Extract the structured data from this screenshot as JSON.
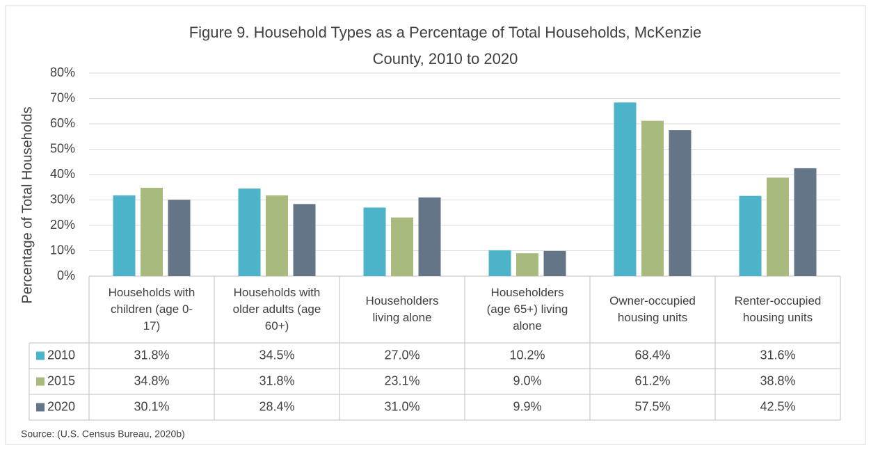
{
  "chart_data": {
    "type": "bar",
    "title": "Figure 9. Household Types as a Percentage of Total Households, McKenzie County, 2010 to 2020",
    "y_label": "Percentage of Total Households",
    "categories": [
      "Households with children (age 0-17)",
      "Households with older adults (age 60+)",
      "Householders living alone",
      "Householders (age 65+) living alone",
      "Owner-occupied housing units",
      "Renter-occupied housing units"
    ],
    "series": [
      {
        "name": "2010",
        "color": "#4db3c8",
        "values": [
          31.8,
          34.5,
          27.0,
          10.2,
          68.4,
          31.6
        ],
        "value_labels": [
          "31.8%",
          "34.5%",
          "27.0%",
          "10.2%",
          "68.4%",
          "31.6%"
        ]
      },
      {
        "name": "2015",
        "color": "#a8ba7d",
        "values": [
          34.8,
          31.8,
          23.1,
          9.0,
          61.2,
          38.8
        ],
        "value_labels": [
          "34.8%",
          "31.8%",
          "23.1%",
          "9.0%",
          "61.2%",
          "38.8%"
        ]
      },
      {
        "name": "2020",
        "color": "#657588",
        "values": [
          30.1,
          28.4,
          31.0,
          9.9,
          57.5,
          42.5
        ],
        "value_labels": [
          "30.1%",
          "28.4%",
          "31.0%",
          "9.9%",
          "57.5%",
          "42.5%"
        ]
      }
    ],
    "ylim": [
      0,
      80
    ],
    "yticks": [
      {
        "value": 0,
        "label": "0%"
      },
      {
        "value": 10,
        "label": "10%"
      },
      {
        "value": 20,
        "label": "20%"
      },
      {
        "value": 30,
        "label": "30%"
      },
      {
        "value": 40,
        "label": "40%"
      },
      {
        "value": 50,
        "label": "50%"
      },
      {
        "value": 60,
        "label": "60%"
      },
      {
        "value": 70,
        "label": "70%"
      },
      {
        "value": 80,
        "label": "80%"
      }
    ],
    "grid": true,
    "source": "Source: (U.S. Census Bureau, 2020b)"
  }
}
